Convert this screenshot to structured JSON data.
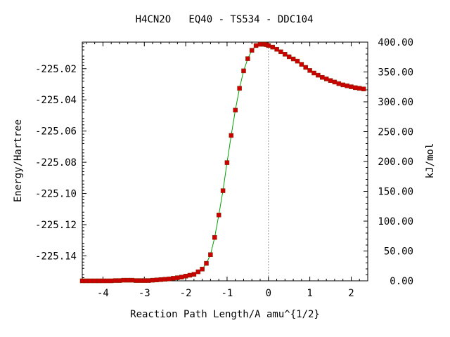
{
  "chart_data": {
    "type": "line",
    "title": "H4CN2O   EQ40 - TS534 - DDC104",
    "xlabel": "Reaction Path Length/A amu^{1/2}",
    "ylabel_left": "Energy/Hartree",
    "ylabel_right": "kJ/mol",
    "xlim": [
      -4.5,
      2.4
    ],
    "ylim_left": [
      -225.156,
      -225.003
    ],
    "ylim_right": [
      0,
      400
    ],
    "x_ticks": [
      -4,
      -3,
      -2,
      -1,
      0,
      1,
      2
    ],
    "x_tick_labels": [
      "-4",
      "-3",
      "-2",
      "-1",
      "0",
      "1",
      "2"
    ],
    "y_left_ticks": [
      -225.02,
      -225.04,
      -225.06,
      -225.08,
      -225.1,
      -225.12,
      -225.14
    ],
    "y_left_tick_labels": [
      "-225.02",
      "-225.04",
      "-225.06",
      "-225.08",
      "-225.10",
      "-225.12",
      "-225.14"
    ],
    "y_right_ticks": [
      400,
      350,
      300,
      250,
      200,
      150,
      100,
      50,
      0
    ],
    "y_right_tick_labels": [
      "400.00",
      "350.00",
      "300.00",
      "250.00",
      "200.00",
      "150.00",
      "100.00",
      "50.00",
      "0.00"
    ],
    "ts_marker_x": 0,
    "series": [
      {
        "line_color": "#00a000",
        "marker_color": "#cc0000",
        "x": [
          -4.5,
          -4.4,
          -4.3,
          -4.2,
          -4.1,
          -4.0,
          -3.9,
          -3.8,
          -3.7,
          -3.6,
          -3.5,
          -3.4,
          -3.3,
          -3.2,
          -3.1,
          -3.0,
          -2.9,
          -2.8,
          -2.7,
          -2.6,
          -2.5,
          -2.4,
          -2.3,
          -2.2,
          -2.1,
          -2.0,
          -1.9,
          -1.8,
          -1.7,
          -1.6,
          -1.5,
          -1.4,
          -1.3,
          -1.2,
          -1.1,
          -1.0,
          -0.9,
          -0.8,
          -0.7,
          -0.6,
          -0.5,
          -0.4,
          -0.3,
          -0.2,
          -0.1,
          -0.05,
          0.0,
          0.1,
          0.2,
          0.3,
          0.4,
          0.5,
          0.6,
          0.7,
          0.8,
          0.9,
          1.0,
          1.1,
          1.2,
          1.3,
          1.4,
          1.5,
          1.6,
          1.7,
          1.8,
          1.9,
          2.0,
          2.1,
          2.2,
          2.3
        ],
        "y": [
          -225.156,
          -225.156,
          -225.156,
          -225.156,
          -225.156,
          -225.156,
          -225.156,
          -225.156,
          -225.1558,
          -225.1558,
          -225.1556,
          -225.1556,
          -225.1556,
          -225.1558,
          -225.1558,
          -225.1558,
          -225.1558,
          -225.1556,
          -225.1554,
          -225.1552,
          -225.155,
          -225.1548,
          -225.1544,
          -225.154,
          -225.1536,
          -225.153,
          -225.1524,
          -225.1518,
          -225.1502,
          -225.1485,
          -225.1448,
          -225.1392,
          -225.1282,
          -225.1138,
          -225.0982,
          -225.0802,
          -225.0628,
          -225.0466,
          -225.0326,
          -225.0214,
          -225.0136,
          -225.0082,
          -225.0052,
          -225.0044,
          -225.0044,
          -225.0046,
          -225.0052,
          -225.0062,
          -225.0076,
          -225.0092,
          -225.0108,
          -225.0124,
          -225.0138,
          -225.0152,
          -225.0172,
          -225.0192,
          -225.0212,
          -225.0228,
          -225.0242,
          -225.0256,
          -225.0266,
          -225.0276,
          -225.0286,
          -225.0296,
          -225.0304,
          -225.031,
          -225.0316,
          -225.0322,
          -225.0326,
          -225.033
        ]
      }
    ]
  }
}
